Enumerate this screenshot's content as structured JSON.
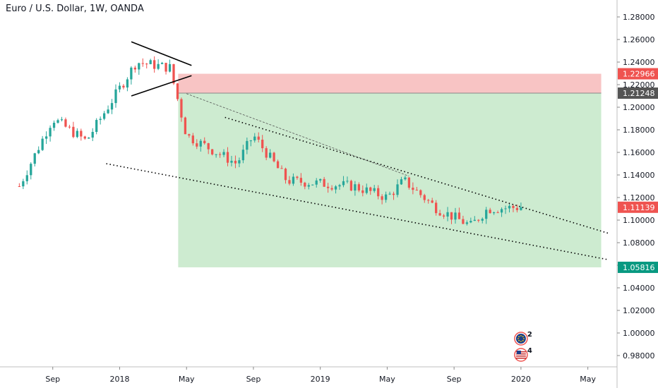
{
  "header": {
    "title": "Euro / U.S. Dollar, 1W, OANDA"
  },
  "chart_data": {
    "type": "candlestick",
    "symbol": "Euro / U.S. Dollar",
    "interval": "1W",
    "broker": "OANDA",
    "ylim": [
      0.97,
      1.295
    ],
    "y_ticks": [
      "1.28000",
      "1.26000",
      "1.24000",
      "1.22000",
      "1.20000",
      "1.18000",
      "1.16000",
      "1.14000",
      "1.12000",
      "1.10000",
      "1.08000",
      "1.06000",
      "1.04000",
      "1.02000",
      "1.00000",
      "0.98000"
    ],
    "x_ticks": [
      "Sep",
      "2018",
      "May",
      "Sep",
      "2019",
      "May",
      "Sep",
      "2020",
      "May"
    ],
    "price_labels": [
      {
        "text": "1.22966",
        "value": 1.22966,
        "color": "#ef5350"
      },
      {
        "text": "1.21248",
        "value": 1.21248,
        "color": "#555555"
      },
      {
        "text": "1.11139",
        "value": 1.11139,
        "color": "#ef5350"
      },
      {
        "text": "1.05816",
        "value": 1.05816,
        "color": "#089981"
      }
    ],
    "zones": {
      "stop": {
        "from": 1.21248,
        "to": 1.22966,
        "color": "#f8c4c4"
      },
      "target": {
        "from": 1.05816,
        "to": 1.21248,
        "color": "#cdebd0"
      }
    },
    "key_points": [
      {
        "date": "2017-07",
        "price": 1.13
      },
      {
        "date": "2017-09",
        "price": 1.19
      },
      {
        "date": "2017-11",
        "price": 1.17
      },
      {
        "date": "2018-02",
        "price": 1.24
      },
      {
        "date": "2018-04",
        "price": 1.235
      },
      {
        "date": "2018-05",
        "price": 1.175
      },
      {
        "date": "2018-08",
        "price": 1.15
      },
      {
        "date": "2018-09",
        "price": 1.175
      },
      {
        "date": "2018-11",
        "price": 1.135
      },
      {
        "date": "2019-03",
        "price": 1.13
      },
      {
        "date": "2019-05",
        "price": 1.12
      },
      {
        "date": "2019-06",
        "price": 1.135
      },
      {
        "date": "2019-08",
        "price": 1.11
      },
      {
        "date": "2019-10",
        "price": 1.095
      },
      {
        "date": "2019-11",
        "price": 1.11
      },
      {
        "date": "2020-01",
        "price": 1.11139
      }
    ],
    "drawings": [
      "symmetrical triangle around 2018 top",
      "descending channel upper trendline",
      "descending channel lower trendline",
      "thin diagonal guide from breakdown"
    ],
    "bull_color": "#26a69a",
    "bear_color": "#ef5350"
  },
  "events": [
    {
      "icon": "euro-flag-icon",
      "count": "2"
    },
    {
      "icon": "us-flag-icon",
      "count": "4"
    }
  ]
}
